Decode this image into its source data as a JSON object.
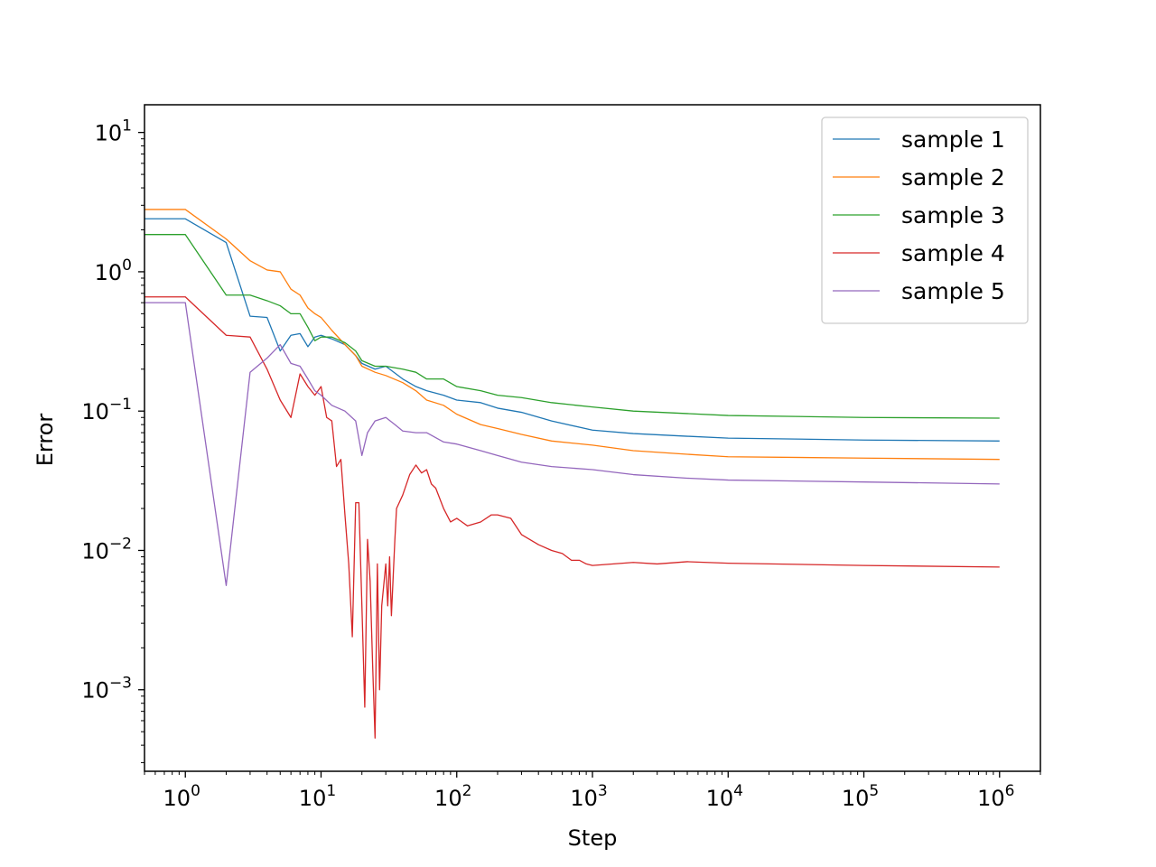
{
  "chart_data": {
    "type": "line",
    "title": "",
    "xlabel": "Step",
    "ylabel": "Error",
    "xscale": "log",
    "yscale": "log",
    "xlim": [
      0.5,
      2000000
    ],
    "ylim": [
      0.00026,
      15.8
    ],
    "xticks": [
      {
        "value": 1,
        "base": "10",
        "exp": "0"
      },
      {
        "value": 10,
        "base": "10",
        "exp": "1"
      },
      {
        "value": 100,
        "base": "10",
        "exp": "2"
      },
      {
        "value": 1000,
        "base": "10",
        "exp": "3"
      },
      {
        "value": 10000,
        "base": "10",
        "exp": "4"
      },
      {
        "value": 100000,
        "base": "10",
        "exp": "5"
      },
      {
        "value": 1000000,
        "base": "10",
        "exp": "6"
      }
    ],
    "yticks": [
      {
        "value": 0.001,
        "base": "10",
        "exp": "−3"
      },
      {
        "value": 0.01,
        "base": "10",
        "exp": "−2"
      },
      {
        "value": 0.1,
        "base": "10",
        "exp": "−1"
      },
      {
        "value": 1,
        "base": "10",
        "exp": "0"
      },
      {
        "value": 10,
        "base": "10",
        "exp": "1"
      }
    ],
    "grid": false,
    "legend_position": "upper right",
    "series": [
      {
        "name": "sample 1",
        "color": "#1f77b4",
        "points": [
          [
            0.5,
            2.4
          ],
          [
            1,
            2.4
          ],
          [
            2,
            1.62
          ],
          [
            3,
            0.48
          ],
          [
            4,
            0.47
          ],
          [
            5,
            0.27
          ],
          [
            6,
            0.35
          ],
          [
            7,
            0.36
          ],
          [
            8,
            0.29
          ],
          [
            9,
            0.34
          ],
          [
            10,
            0.35
          ],
          [
            12,
            0.33
          ],
          [
            15,
            0.3
          ],
          [
            18,
            0.25
          ],
          [
            20,
            0.22
          ],
          [
            25,
            0.2
          ],
          [
            30,
            0.21
          ],
          [
            40,
            0.17
          ],
          [
            50,
            0.15
          ],
          [
            60,
            0.14
          ],
          [
            80,
            0.13
          ],
          [
            100,
            0.12
          ],
          [
            150,
            0.115
          ],
          [
            200,
            0.105
          ],
          [
            300,
            0.098
          ],
          [
            500,
            0.085
          ],
          [
            1000,
            0.073
          ],
          [
            2000,
            0.069
          ],
          [
            5000,
            0.066
          ],
          [
            10000,
            0.064
          ],
          [
            100000,
            0.062
          ],
          [
            1000000,
            0.061
          ]
        ]
      },
      {
        "name": "sample 2",
        "color": "#ff7f0e",
        "points": [
          [
            0.5,
            2.8
          ],
          [
            1,
            2.8
          ],
          [
            2,
            1.72
          ],
          [
            3,
            1.2
          ],
          [
            4,
            1.03
          ],
          [
            5,
            1.0
          ],
          [
            6,
            0.75
          ],
          [
            7,
            0.68
          ],
          [
            8,
            0.55
          ],
          [
            9,
            0.5
          ],
          [
            10,
            0.47
          ],
          [
            12,
            0.38
          ],
          [
            15,
            0.3
          ],
          [
            18,
            0.25
          ],
          [
            20,
            0.21
          ],
          [
            25,
            0.19
          ],
          [
            30,
            0.18
          ],
          [
            40,
            0.16
          ],
          [
            50,
            0.14
          ],
          [
            60,
            0.12
          ],
          [
            80,
            0.11
          ],
          [
            100,
            0.095
          ],
          [
            150,
            0.08
          ],
          [
            200,
            0.075
          ],
          [
            300,
            0.068
          ],
          [
            500,
            0.061
          ],
          [
            1000,
            0.057
          ],
          [
            2000,
            0.052
          ],
          [
            5000,
            0.049
          ],
          [
            10000,
            0.047
          ],
          [
            100000,
            0.046
          ],
          [
            1000000,
            0.045
          ]
        ]
      },
      {
        "name": "sample 3",
        "color": "#2ca02c",
        "points": [
          [
            0.5,
            1.85
          ],
          [
            1,
            1.85
          ],
          [
            2,
            0.68
          ],
          [
            3,
            0.68
          ],
          [
            4,
            0.62
          ],
          [
            5,
            0.57
          ],
          [
            6,
            0.5
          ],
          [
            7,
            0.5
          ],
          [
            8,
            0.4
          ],
          [
            9,
            0.32
          ],
          [
            10,
            0.34
          ],
          [
            12,
            0.34
          ],
          [
            15,
            0.31
          ],
          [
            18,
            0.27
          ],
          [
            20,
            0.23
          ],
          [
            25,
            0.21
          ],
          [
            30,
            0.21
          ],
          [
            40,
            0.2
          ],
          [
            50,
            0.19
          ],
          [
            60,
            0.17
          ],
          [
            80,
            0.17
          ],
          [
            100,
            0.15
          ],
          [
            150,
            0.14
          ],
          [
            200,
            0.13
          ],
          [
            300,
            0.125
          ],
          [
            500,
            0.115
          ],
          [
            1000,
            0.107
          ],
          [
            2000,
            0.1
          ],
          [
            5000,
            0.096
          ],
          [
            10000,
            0.093
          ],
          [
            100000,
            0.09
          ],
          [
            1000000,
            0.089
          ]
        ]
      },
      {
        "name": "sample 4",
        "color": "#d62728",
        "points": [
          [
            0.5,
            0.66
          ],
          [
            1,
            0.66
          ],
          [
            2,
            0.35
          ],
          [
            3,
            0.34
          ],
          [
            4,
            0.2
          ],
          [
            5,
            0.12
          ],
          [
            6,
            0.09
          ],
          [
            7,
            0.185
          ],
          [
            8,
            0.15
          ],
          [
            9,
            0.13
          ],
          [
            10,
            0.15
          ],
          [
            11,
            0.09
          ],
          [
            12,
            0.085
          ],
          [
            13,
            0.04
          ],
          [
            14,
            0.045
          ],
          [
            15,
            0.018
          ],
          [
            16,
            0.008
          ],
          [
            17,
            0.0024
          ],
          [
            18,
            0.022
          ],
          [
            19,
            0.022
          ],
          [
            20,
            0.004
          ],
          [
            21,
            0.00075
          ],
          [
            22,
            0.012
          ],
          [
            23,
            0.006
          ],
          [
            24,
            0.0015
          ],
          [
            25,
            0.00045
          ],
          [
            26,
            0.008
          ],
          [
            27,
            0.001
          ],
          [
            28,
            0.004
          ],
          [
            30,
            0.008
          ],
          [
            31,
            0.004
          ],
          [
            32,
            0.009
          ],
          [
            33,
            0.0034
          ],
          [
            35,
            0.012
          ],
          [
            36,
            0.02
          ],
          [
            40,
            0.025
          ],
          [
            45,
            0.035
          ],
          [
            50,
            0.041
          ],
          [
            55,
            0.036
          ],
          [
            60,
            0.038
          ],
          [
            65,
            0.03
          ],
          [
            70,
            0.028
          ],
          [
            80,
            0.02
          ],
          [
            90,
            0.016
          ],
          [
            100,
            0.017
          ],
          [
            120,
            0.015
          ],
          [
            150,
            0.016
          ],
          [
            180,
            0.018
          ],
          [
            200,
            0.018
          ],
          [
            250,
            0.017
          ],
          [
            300,
            0.013
          ],
          [
            400,
            0.011
          ],
          [
            500,
            0.01
          ],
          [
            600,
            0.0095
          ],
          [
            700,
            0.0085
          ],
          [
            800,
            0.0085
          ],
          [
            900,
            0.008
          ],
          [
            1000,
            0.0078
          ],
          [
            2000,
            0.0082
          ],
          [
            3000,
            0.008
          ],
          [
            5000,
            0.0083
          ],
          [
            10000,
            0.0081
          ],
          [
            100000,
            0.0078
          ],
          [
            1000000,
            0.0076
          ]
        ]
      },
      {
        "name": "sample 5",
        "color": "#9467bd",
        "points": [
          [
            0.5,
            0.6
          ],
          [
            1,
            0.6
          ],
          [
            2,
            0.0056
          ],
          [
            3,
            0.19
          ],
          [
            4,
            0.24
          ],
          [
            5,
            0.3
          ],
          [
            6,
            0.22
          ],
          [
            7,
            0.21
          ],
          [
            8,
            0.17
          ],
          [
            9,
            0.14
          ],
          [
            10,
            0.13
          ],
          [
            12,
            0.11
          ],
          [
            15,
            0.1
          ],
          [
            18,
            0.085
          ],
          [
            20,
            0.048
          ],
          [
            22,
            0.07
          ],
          [
            25,
            0.085
          ],
          [
            30,
            0.09
          ],
          [
            35,
            0.08
          ],
          [
            40,
            0.072
          ],
          [
            50,
            0.07
          ],
          [
            60,
            0.07
          ],
          [
            80,
            0.06
          ],
          [
            100,
            0.058
          ],
          [
            150,
            0.052
          ],
          [
            200,
            0.048
          ],
          [
            300,
            0.043
          ],
          [
            500,
            0.04
          ],
          [
            1000,
            0.038
          ],
          [
            2000,
            0.035
          ],
          [
            5000,
            0.033
          ],
          [
            10000,
            0.032
          ],
          [
            100000,
            0.031
          ],
          [
            1000000,
            0.03
          ]
        ]
      }
    ]
  }
}
